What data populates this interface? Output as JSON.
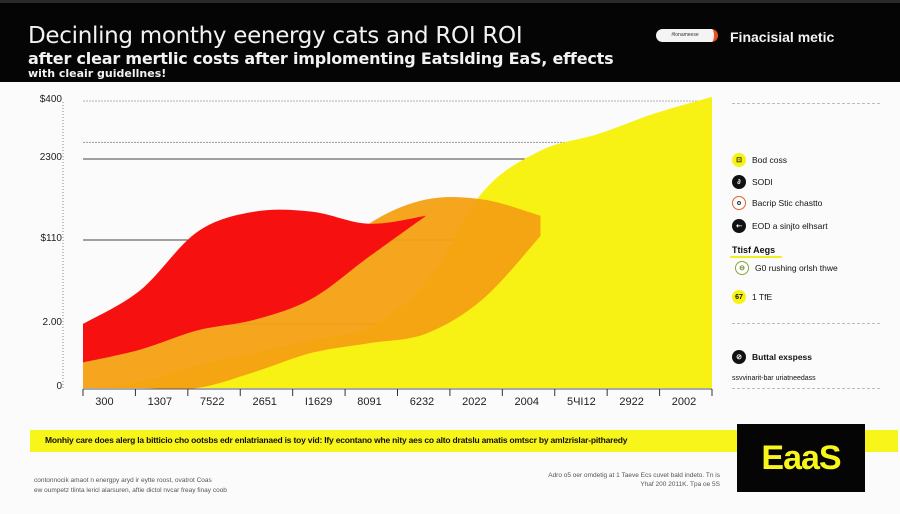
{
  "header": {
    "title": "Decinling monthy eenergy cats and ROI ROI",
    "subtitle": "after clear mertlic costs after implomenting Eatslding EaS, effects",
    "subtitle2": "with cleair guidellnes!",
    "badge": "#lonameese",
    "metric_label": "Finacisial metic"
  },
  "chart_data": {
    "type": "area",
    "title": "Decinling monthy eenergy cats and ROI ROI",
    "xlabel": "",
    "ylabel": "",
    "y_tick_labels": [
      "0",
      "2.00",
      "$110",
      "2300",
      "$400"
    ],
    "y_tick_levels": [
      0,
      1,
      2,
      3,
      3.7
    ],
    "ylim": [
      0,
      3.85
    ],
    "grid": true,
    "categories": [
      "300",
      "1307",
      "7522",
      "2651",
      "I1629",
      "8091",
      "6232",
      "2022",
      "2004",
      "5ЧI12",
      "2922",
      "2002"
    ],
    "series": [
      {
        "name": "Bod coss",
        "color": "#f8f214",
        "upper": [
          0.0,
          0.1,
          0.35,
          0.55,
          0.75,
          0.95,
          1.5,
          2.6,
          3.1,
          3.3,
          3.55,
          3.75
        ],
        "lower": [
          0,
          0,
          0,
          0,
          0,
          0,
          0,
          0,
          0,
          0,
          0,
          0
        ]
      },
      {
        "name": "Bacrip Stic chastto",
        "color": "#f5a012",
        "upper": [
          0.4,
          0.7,
          0.95,
          1.25,
          1.6,
          2.2,
          2.5,
          2.5,
          2.3,
          0,
          0,
          0
        ],
        "lower": [
          0.0,
          0.0,
          0.0,
          0.25,
          0.55,
          0.7,
          0.85,
          1.3,
          2.05,
          0,
          0,
          0
        ]
      },
      {
        "name": "SODI",
        "color": "#f71010",
        "upper": [
          1.0,
          1.4,
          2.1,
          2.35,
          2.35,
          2.2,
          2.3,
          0,
          0,
          0,
          0,
          0
        ],
        "lower": [
          0.4,
          0.6,
          0.9,
          1.05,
          1.3,
          1.8,
          2.3,
          0,
          0,
          0,
          0,
          0
        ]
      }
    ],
    "legend_position": "right"
  },
  "legend": {
    "items": [
      {
        "label": "Bod coss",
        "icon": "camera-icon",
        "glyph": "⊡"
      },
      {
        "label": "SODI",
        "icon": "link-icon",
        "glyph": "∂"
      },
      {
        "label": "Bacrip Stic chastto",
        "icon": "ring-icon",
        "glyph": "o"
      },
      {
        "label": "EOD a sinjto elhsart",
        "icon": "arrow-icon",
        "glyph": "⇠"
      }
    ],
    "heading": "Ttisf Aegs",
    "sub_items": [
      {
        "label": "G0 rushing orlsh thwe",
        "icon": "clock-icon",
        "glyph": "⊖"
      },
      {
        "label": "1 TfE",
        "icon": "tag-icon",
        "glyph": "67"
      }
    ],
    "bottom_item": {
      "label": "Buttal exspess",
      "icon": "pill-icon",
      "glyph": "⊘"
    },
    "bottom_note": "ssvvinarit-bar uriatneedass"
  },
  "footnote": {
    "band_text": "Monhiy care does alerg la bitticio cho ootsbs edr enlatrianaed is toy vid: Ify econtano whe nity aes co alto dratslu amatis omtscr by amlzrislar-pitharedy",
    "source_left_1": "contonnocik amaot n energpy aryd ir eytte roost, ovatrot Coas",
    "source_left_2": "ew oumpetz tlinta lericl alarsuren, aftie dictol nvcar freay finay coob",
    "source_right_1": "Adro o5 oer omdetig at 1 Taeve Ecs cuvet bald indeto. Tn is",
    "source_right_2": "Yhaf 200 2011K. Tpa oe 5S"
  },
  "logo": {
    "text": "EaaS"
  },
  "colors": {
    "yellow": "#f8f214",
    "orange": "#f5a012",
    "red": "#f71010",
    "black": "#050505"
  }
}
